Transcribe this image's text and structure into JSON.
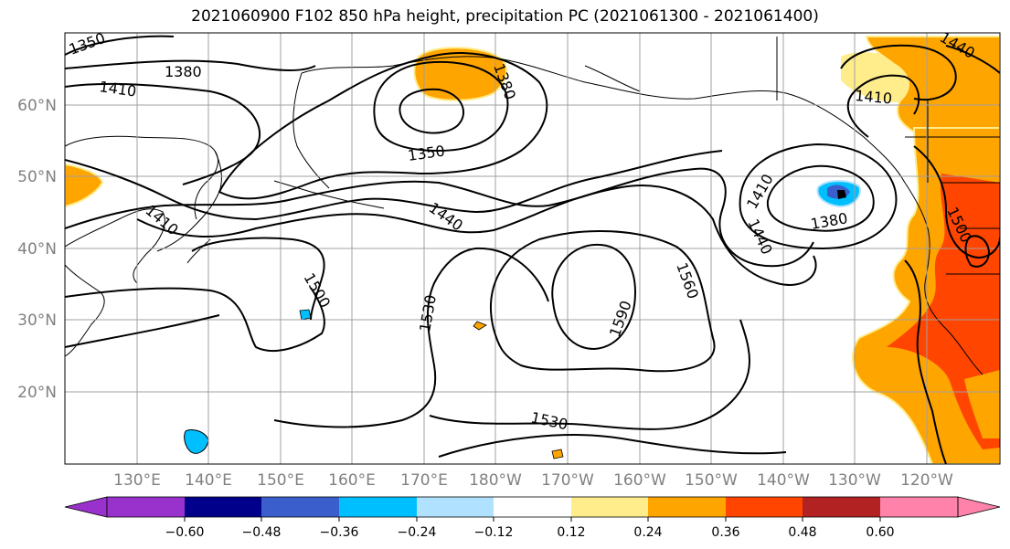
{
  "title": "2021060900 F102 850 hPa height, precipitation PC (2021061300 - 2021061400)",
  "lat_labels": [
    "60°N",
    "50°N",
    "40°N",
    "30°N",
    "20°N"
  ],
  "lon_labels": [
    "130°E",
    "140°E",
    "150°E",
    "160°E",
    "170°E",
    "180°W",
    "170°W",
    "160°W",
    "150°W",
    "140°W",
    "130°W",
    "120°W"
  ],
  "contour_labels": [
    "1350",
    "1380",
    "1410",
    "1350",
    "1380",
    "1410",
    "1440",
    "1500",
    "1530",
    "1590",
    "1560",
    "1530",
    "1410",
    "1380",
    "1440",
    "1410",
    "1440",
    "1500"
  ],
  "colorbar": {
    "colors": [
      "#9932cc",
      "#00008b",
      "#3a5fcd",
      "#00bfff",
      "#b0e2ff",
      "#ffffff",
      "#ffec8b",
      "#ffa500",
      "#ff4500",
      "#b22222",
      "#ff82ab"
    ],
    "labels": [
      "−0.60",
      "−0.48",
      "−0.36",
      "−0.24",
      "−0.12",
      "0.12",
      "0.24",
      "0.36",
      "0.48",
      "0.60"
    ]
  },
  "colors": {
    "land_outline": "#000000",
    "grid": "#a0a0a0",
    "contour": "#000000",
    "positive_mid": "#ffa500",
    "positive_high": "#ff4500",
    "negative": "#00bfff"
  }
}
